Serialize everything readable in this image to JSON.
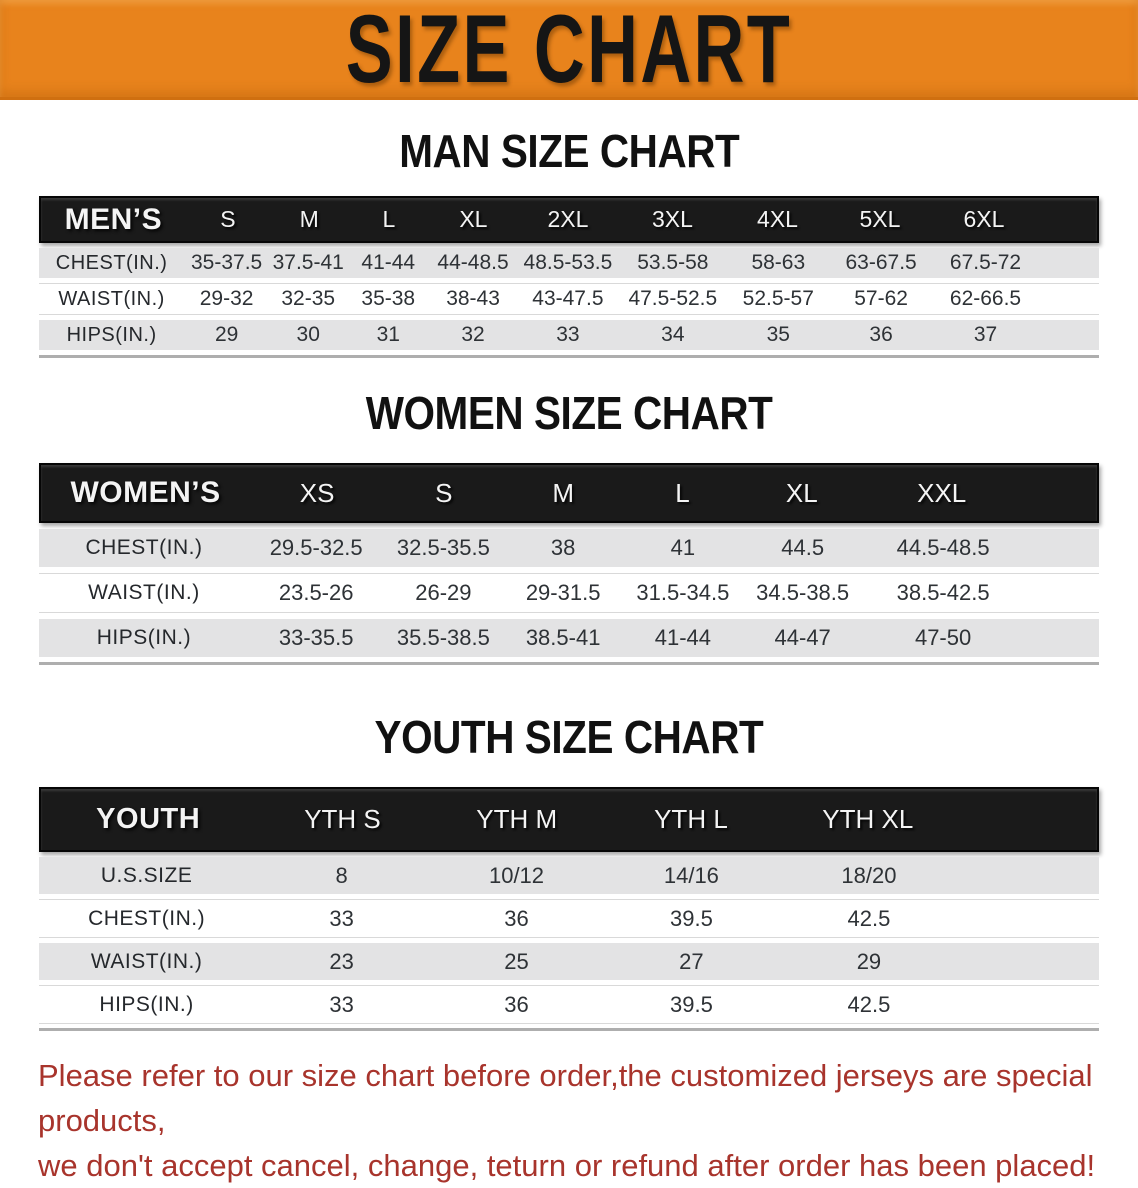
{
  "banner": {
    "title": "SIZE CHART"
  },
  "sections": {
    "men": {
      "heading": "MAN SIZE CHART",
      "table": {
        "header_label": "MEN’S",
        "sizes": [
          "S",
          "M",
          "L",
          "XL",
          "2XL",
          "3XL",
          "4XL",
          "5XL",
          "6XL"
        ],
        "rows": [
          {
            "label": "CHEST(IN.)",
            "values": [
              "35-37.5",
              "37.5-41",
              "41-44",
              "44-48.5",
              "48.5-53.5",
              "53.5-58",
              "58-63",
              "63-67.5",
              "67.5-72"
            ]
          },
          {
            "label": "WAIST(IN.)",
            "values": [
              "29-32",
              "32-35",
              "35-38",
              "38-43",
              "43-47.5",
              "47.5-52.5",
              "52.5-57",
              "57-62",
              "62-66.5"
            ]
          },
          {
            "label": "HIPS(IN.)",
            "values": [
              "29",
              "30",
              "31",
              "32",
              "33",
              "34",
              "35",
              "36",
              "37"
            ]
          }
        ]
      }
    },
    "women": {
      "heading": "WOMEN SIZE CHART",
      "table": {
        "header_label": "WOMEN’S",
        "sizes": [
          "XS",
          "S",
          "M",
          "L",
          "XL",
          "XXL"
        ],
        "rows": [
          {
            "label": "CHEST(IN.)",
            "values": [
              "29.5-32.5",
              "32.5-35.5",
              "38",
              "41",
              "44.5",
              "44.5-48.5"
            ]
          },
          {
            "label": "WAIST(IN.)",
            "values": [
              "23.5-26",
              "26-29",
              "29-31.5",
              "31.5-34.5",
              "34.5-38.5",
              "38.5-42.5"
            ]
          },
          {
            "label": "HIPS(IN.)",
            "values": [
              "33-35.5",
              "35.5-38.5",
              "38.5-41",
              "41-44",
              "44-47",
              "47-50"
            ]
          }
        ]
      }
    },
    "youth": {
      "heading": "YOUTH SIZE CHART",
      "table": {
        "header_label": "YOUTH",
        "sizes": [
          "YTH S",
          "YTH M",
          "YTH L",
          "YTH XL"
        ],
        "rows": [
          {
            "label": "U.S.SIZE",
            "values": [
              "8",
              "10/12",
              "14/16",
              "18/20"
            ]
          },
          {
            "label": "CHEST(IN.)",
            "values": [
              "33",
              "36",
              "39.5",
              "42.5"
            ]
          },
          {
            "label": "WAIST(IN.)",
            "values": [
              "23",
              "25",
              "27",
              "29"
            ]
          },
          {
            "label": "HIPS(IN.)",
            "values": [
              "33",
              "36",
              "39.5",
              "42.5"
            ]
          }
        ]
      }
    }
  },
  "footer": {
    "line1": "Please refer to our size chart before order,the customized jerseys are special products,",
    "line2": "we don't accept cancel, change, teturn or refund after order has been placed!"
  },
  "colors": {
    "banner_orange": "#E8831C",
    "header_black": "#1A1A1A",
    "row_gray": "#E3E3E4",
    "row_white": "#FFFFFF",
    "data_text": "#2E3236",
    "footer_red": "#A8342C"
  }
}
